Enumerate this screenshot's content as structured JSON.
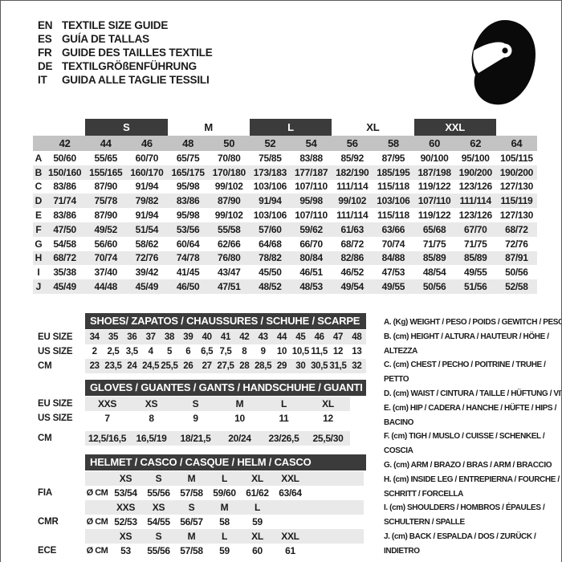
{
  "header": {
    "languages": [
      {
        "code": "EN",
        "title": "TEXTILE SIZE GUIDE"
      },
      {
        "code": "ES",
        "title": "GUÍA DE TALLAS"
      },
      {
        "code": "FR",
        "title": "GUIDE DES TAILLES TEXTILE"
      },
      {
        "code": "DE",
        "title": "TEXTILGRÖßENFÜHRUNG"
      },
      {
        "code": "IT",
        "title": "GUIDA ALLE TAGLIE TESSILI"
      }
    ],
    "logo_icon": "racing-helmet-icon"
  },
  "colors": {
    "dark_bar": "#3b3b3b",
    "size_row_bg": "#c3c3c3",
    "alt_row_bg": "#e9e9e9",
    "text": "#1b1b1b",
    "text_on_dark": "#ffffff"
  },
  "textile_table": {
    "bands": [
      {
        "label": "S",
        "dark": true
      },
      {
        "label": "M",
        "dark": false
      },
      {
        "label": "L",
        "dark": true
      },
      {
        "label": "XL",
        "dark": false
      },
      {
        "label": "XXL",
        "dark": true
      }
    ],
    "sizes": [
      "42",
      "44",
      "46",
      "48",
      "50",
      "52",
      "54",
      "56",
      "58",
      "60",
      "62",
      "64"
    ],
    "rows": [
      {
        "letter": "A",
        "values": [
          "50/60",
          "55/65",
          "60/70",
          "65/75",
          "70/80",
          "75/85",
          "83/88",
          "85/92",
          "87/95",
          "90/100",
          "95/100",
          "105/115"
        ]
      },
      {
        "letter": "B",
        "values": [
          "150/160",
          "155/165",
          "160/170",
          "165/175",
          "170/180",
          "173/183",
          "177/187",
          "182/190",
          "185/195",
          "187/198",
          "190/200",
          "190/200"
        ]
      },
      {
        "letter": "C",
        "values": [
          "83/86",
          "87/90",
          "91/94",
          "95/98",
          "99/102",
          "103/106",
          "107/110",
          "111/114",
          "115/118",
          "119/122",
          "123/126",
          "127/130"
        ]
      },
      {
        "letter": "D",
        "values": [
          "71/74",
          "75/78",
          "79/82",
          "83/86",
          "87/90",
          "91/94",
          "95/98",
          "99/102",
          "103/106",
          "107/110",
          "111/114",
          "115/119"
        ]
      },
      {
        "letter": "E",
        "values": [
          "83/86",
          "87/90",
          "91/94",
          "95/98",
          "99/102",
          "103/106",
          "107/110",
          "111/114",
          "115/118",
          "119/122",
          "123/126",
          "127/130"
        ]
      },
      {
        "letter": "F",
        "values": [
          "47/50",
          "49/52",
          "51/54",
          "53/56",
          "55/58",
          "57/60",
          "59/62",
          "61/63",
          "63/66",
          "65/68",
          "67/70",
          "68/72"
        ]
      },
      {
        "letter": "G",
        "values": [
          "54/58",
          "56/60",
          "58/62",
          "60/64",
          "62/66",
          "64/68",
          "66/70",
          "68/72",
          "70/74",
          "71/75",
          "71/75",
          "72/76"
        ]
      },
      {
        "letter": "H",
        "values": [
          "68/72",
          "70/74",
          "72/76",
          "74/78",
          "76/80",
          "78/82",
          "80/84",
          "82/86",
          "84/88",
          "85/89",
          "85/89",
          "87/91"
        ]
      },
      {
        "letter": "I",
        "values": [
          "35/38",
          "37/40",
          "39/42",
          "41/45",
          "43/47",
          "45/50",
          "46/51",
          "46/52",
          "47/53",
          "48/54",
          "49/55",
          "50/56"
        ]
      },
      {
        "letter": "J",
        "values": [
          "45/49",
          "44/48",
          "45/49",
          "46/50",
          "47/51",
          "48/52",
          "48/53",
          "49/54",
          "49/55",
          "50/56",
          "51/56",
          "52/58"
        ]
      }
    ]
  },
  "shoes_table": {
    "title": "SHOES/ ZAPATOS / CHAUSSURES / SCHUHE / SCARPE",
    "row_labels": [
      "EU SIZE",
      "US SIZE",
      "CM"
    ],
    "eu_sizes": [
      "34",
      "35",
      "36",
      "37",
      "38",
      "39",
      "40",
      "41",
      "42",
      "43",
      "44",
      "45",
      "46",
      "47",
      "48"
    ],
    "us_sizes": [
      "2",
      "2,5",
      "3,5",
      "4",
      "5",
      "6",
      "6,5",
      "7,5",
      "8",
      "9",
      "10",
      "10,5",
      "11,5",
      "12",
      "13"
    ],
    "cm": [
      "23",
      "23,5",
      "24",
      "24,5",
      "25,5",
      "26",
      "27",
      "27,5",
      "28",
      "28,5",
      "29",
      "30",
      "30,5",
      "31,5",
      "32"
    ]
  },
  "gloves_table": {
    "title": "GLOVES / GUANTES / GANTS / HANDSCHUHE / GUANTI",
    "row_labels": [
      "EU SIZE",
      "US SIZE",
      "CM"
    ],
    "eu_sizes": [
      "XXS",
      "XS",
      "S",
      "M",
      "L",
      "XL"
    ],
    "us_sizes": [
      "7",
      "8",
      "9",
      "10",
      "11",
      "12"
    ],
    "cm": [
      "12,5/16,5",
      "16,5/19",
      "18/21,5",
      "20/24",
      "23/26,5",
      "25,5/30"
    ]
  },
  "helmet_table": {
    "title": "HELMET / CASCO / CASQUE / HELM / CASCO",
    "unit": "Ø CM",
    "groups": [
      {
        "standard": "FIA",
        "sizes": [
          "XS",
          "S",
          "M",
          "L",
          "XL",
          "XXL"
        ],
        "values": [
          "53/54",
          "55/56",
          "57/58",
          "59/60",
          "61/62",
          "63/64"
        ]
      },
      {
        "standard": "CMR",
        "sizes": [
          "XXS",
          "XS",
          "S",
          "M",
          "L"
        ],
        "values": [
          "52/53",
          "54/55",
          "56/57",
          "58",
          "59"
        ]
      },
      {
        "standard": "ECE",
        "sizes": [
          "XS",
          "S",
          "M",
          "L",
          "XL",
          "XXL"
        ],
        "values": [
          "53",
          "55/56",
          "57/58",
          "59",
          "60",
          "61"
        ]
      }
    ]
  },
  "legend": {
    "items": [
      "A. (Kg) WEIGHT / PESO / POIDS / GEWITCH / PESO",
      "B. (cm) HEIGHT / ALTURA / HAUTEUR / HÖHE / ALTEZZA",
      "C. (cm) CHEST / PECHO / POITRINE / TRUHE / PETTO",
      "D. (cm) WAIST / CINTURA / TAILLE / HÜFTUNG / VITA",
      "E. (cm) HIP / CADERA / HANCHE / HÜFTE / HIPS / BACINO",
      "F. (cm) TIGH / MUSLO / CUISSE / SCHENKEL / COSCIA",
      "G. (cm) ARM / BRAZO / BRAS / ARM / BRACCIO",
      "H. (cm) INSIDE LEG / ENTREPIERNA / FOURCHE / SCHRITT / FORCELLA",
      "I. (cm) SHOULDERS / HOMBROS / ÉPAULES / SCHULTERN / SPALLE",
      "J. (cm) BACK / ESPALDA / DOS / ZURÜCK / INDIETRO"
    ]
  }
}
